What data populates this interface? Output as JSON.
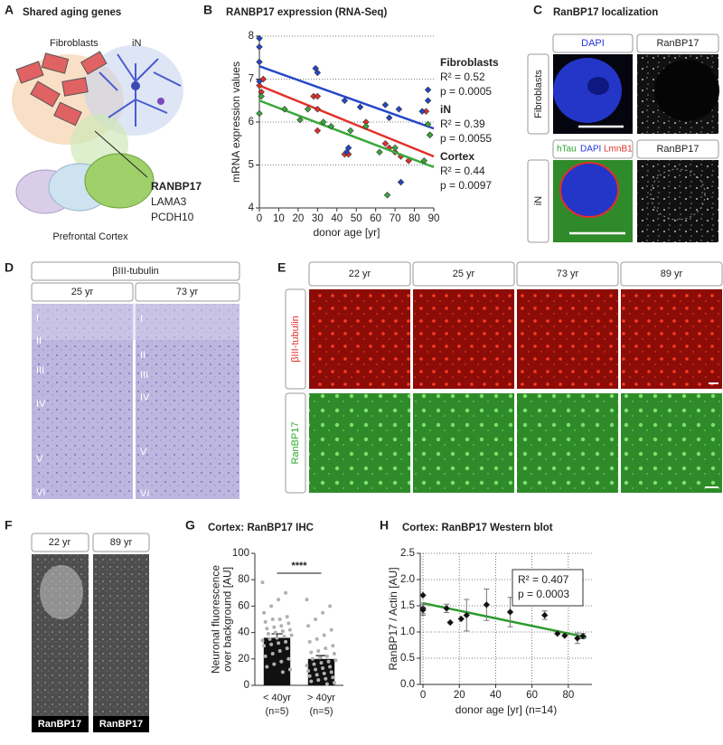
{
  "figure": {
    "A": {
      "letter": "A",
      "title": "Shared aging genes",
      "cell_labels": [
        "Fibroblasts",
        "iN"
      ],
      "genes": [
        "RANBP17",
        "LAMA3",
        "PCDH10"
      ],
      "region": "Prefrontal Cortex"
    },
    "C": {
      "letter": "C",
      "title": "RanBP17 localization",
      "row_labels": [
        "Fibroblasts",
        "iN"
      ],
      "stains_top": [
        "DAPI",
        "RanBP17"
      ],
      "stains_bottom": [
        "hTau",
        "DAPI",
        "LmnB1",
        "RanBP17"
      ]
    },
    "D": {
      "letter": "D",
      "stain": "βIII-tubulin",
      "columns": [
        "25 yr",
        "73 yr"
      ],
      "layers": [
        "I",
        "II",
        "III",
        "IV",
        "V",
        "VI"
      ]
    },
    "E": {
      "letter": "E",
      "columns": [
        "22 yr",
        "25 yr",
        "73 yr",
        "89 yr"
      ],
      "rows": [
        "βIII-tubulin",
        "RanBP17"
      ]
    },
    "F": {
      "letter": "F",
      "columns": [
        "22 yr",
        "89 yr"
      ],
      "stain": "RanBP17"
    }
  },
  "chart_data": [
    {
      "type": "scatter",
      "panel": "B",
      "title": "RANBP17 expression (RNA-Seq)",
      "xlabel": "donor age [yr]",
      "ylabel": "mRNA expression values",
      "xlim": [
        0,
        90
      ],
      "xticks": [
        0,
        10,
        20,
        30,
        40,
        50,
        60,
        70,
        80,
        90
      ],
      "ylim": [
        4,
        8
      ],
      "yticks": [
        4,
        5,
        6,
        7,
        8
      ],
      "grid": "y",
      "series": [
        {
          "name": "Fibroblasts",
          "color": "#e2302a",
          "x": [
            0,
            1,
            2,
            28,
            30,
            30,
            30,
            44,
            46,
            55,
            65,
            67,
            70,
            73,
            77,
            86,
            88
          ],
          "values": [
            6.85,
            6.7,
            7.0,
            6.6,
            6.6,
            6.3,
            5.8,
            5.25,
            5.25,
            6.0,
            5.5,
            5.4,
            5.3,
            5.2,
            5.1,
            6.25,
            5.7
          ],
          "trend": {
            "x": [
              0,
              90
            ],
            "values": [
              6.85,
              5.2
            ]
          },
          "stats": [
            "R² = 0.52",
            "p = 0.0005"
          ]
        },
        {
          "name": "iN",
          "color": "#2447c8",
          "x": [
            0,
            0,
            0,
            0,
            29,
            30,
            44,
            46,
            45,
            52,
            65,
            67,
            73,
            72,
            84,
            87,
            87
          ],
          "values": [
            7.95,
            7.75,
            7.4,
            6.95,
            7.25,
            7.15,
            6.5,
            5.4,
            5.3,
            6.35,
            6.4,
            6.1,
            4.6,
            6.3,
            6.25,
            6.5,
            6.75
          ],
          "trend": {
            "x": [
              0,
              90
            ],
            "values": [
              7.3,
              5.85
            ]
          },
          "stats": [
            "R² = 0.39",
            "p = 0.0055"
          ]
        },
        {
          "name": "Cortex",
          "color": "#3aa83a",
          "x": [
            0,
            1,
            13,
            21,
            25,
            33,
            37,
            47,
            55,
            62,
            66,
            70,
            85,
            87,
            88
          ],
          "values": [
            6.2,
            6.6,
            6.3,
            6.05,
            6.3,
            6.0,
            5.9,
            5.8,
            5.9,
            5.3,
            4.3,
            5.4,
            5.1,
            5.95,
            5.7
          ],
          "trend": {
            "x": [
              0,
              90
            ],
            "values": [
              6.5,
              4.95
            ]
          },
          "stats": [
            "R² = 0.44",
            "p = 0.0097"
          ]
        }
      ]
    },
    {
      "type": "bar",
      "panel": "G",
      "title": "Cortex: RanBP17 IHC",
      "ylabel": [
        "Neuronal fluorescence",
        "over background [AU]"
      ],
      "categories": [
        "< 40yr",
        "> 40yr"
      ],
      "sublabels": [
        "(n=5)",
        "(n=5)"
      ],
      "values": [
        36,
        20
      ],
      "errors": [
        3,
        2.5
      ],
      "color": "#111111",
      "point_color": "#b0b0b0",
      "points": [
        [
          78,
          70,
          65,
          60,
          55,
          52,
          50,
          50,
          48,
          47,
          45,
          44,
          43,
          42,
          41,
          40,
          39,
          38,
          37,
          36,
          35,
          34,
          33,
          32,
          31,
          30,
          28,
          26,
          24,
          22,
          20,
          18,
          16,
          14,
          12,
          10
        ],
        [
          65,
          60,
          55,
          50,
          45,
          42,
          38,
          35,
          33,
          30,
          28,
          26,
          25,
          24,
          22,
          21,
          20,
          19,
          18,
          17,
          16,
          15,
          14,
          13,
          12,
          11,
          10,
          9,
          8,
          7,
          6,
          5,
          4,
          3,
          2,
          1
        ]
      ],
      "ylim": [
        0,
        100
      ],
      "yticks": [
        0,
        20,
        40,
        60,
        80,
        100
      ],
      "annotation": "****"
    },
    {
      "type": "scatter",
      "panel": "H",
      "title": "Cortex: RanBP17 Western blot",
      "xlabel": "donor age [yr] (n=14)",
      "ylabel": "RanBP17 / Actin [AU]",
      "xlim": [
        -1.5,
        93
      ],
      "xticks": [
        0,
        20,
        40,
        60,
        80
      ],
      "ylim": [
        0,
        2.5
      ],
      "yticks": [
        {
          "value": 0,
          "label": "0.0"
        },
        0.5,
        {
          "value": 1,
          "label": "1.0"
        },
        1.5,
        {
          "value": 2,
          "label": "2.0"
        },
        2.5
      ],
      "grid": "both",
      "series": [
        {
          "color": "#111111",
          "x": [
            0,
            0,
            0,
            13,
            15,
            21,
            24,
            35,
            48,
            67,
            74,
            78,
            85,
            88
          ],
          "values": [
            1.7,
            1.45,
            1.42,
            1.45,
            1.18,
            1.25,
            1.32,
            1.52,
            1.38,
            1.32,
            0.97,
            0.93,
            0.88,
            0.92
          ],
          "errors": [
            null,
            0.1,
            0.1,
            0.08,
            null,
            null,
            0.3,
            0.3,
            0.28,
            0.08,
            null,
            null,
            0.1,
            0.05
          ],
          "trend": {
            "x": [
              0,
              90
            ],
            "values": [
              1.55,
              0.9
            ],
            "color": "#2e9a2e"
          }
        }
      ],
      "annotation": [
        "R² = 0.407",
        "p = 0.0003"
      ]
    }
  ]
}
